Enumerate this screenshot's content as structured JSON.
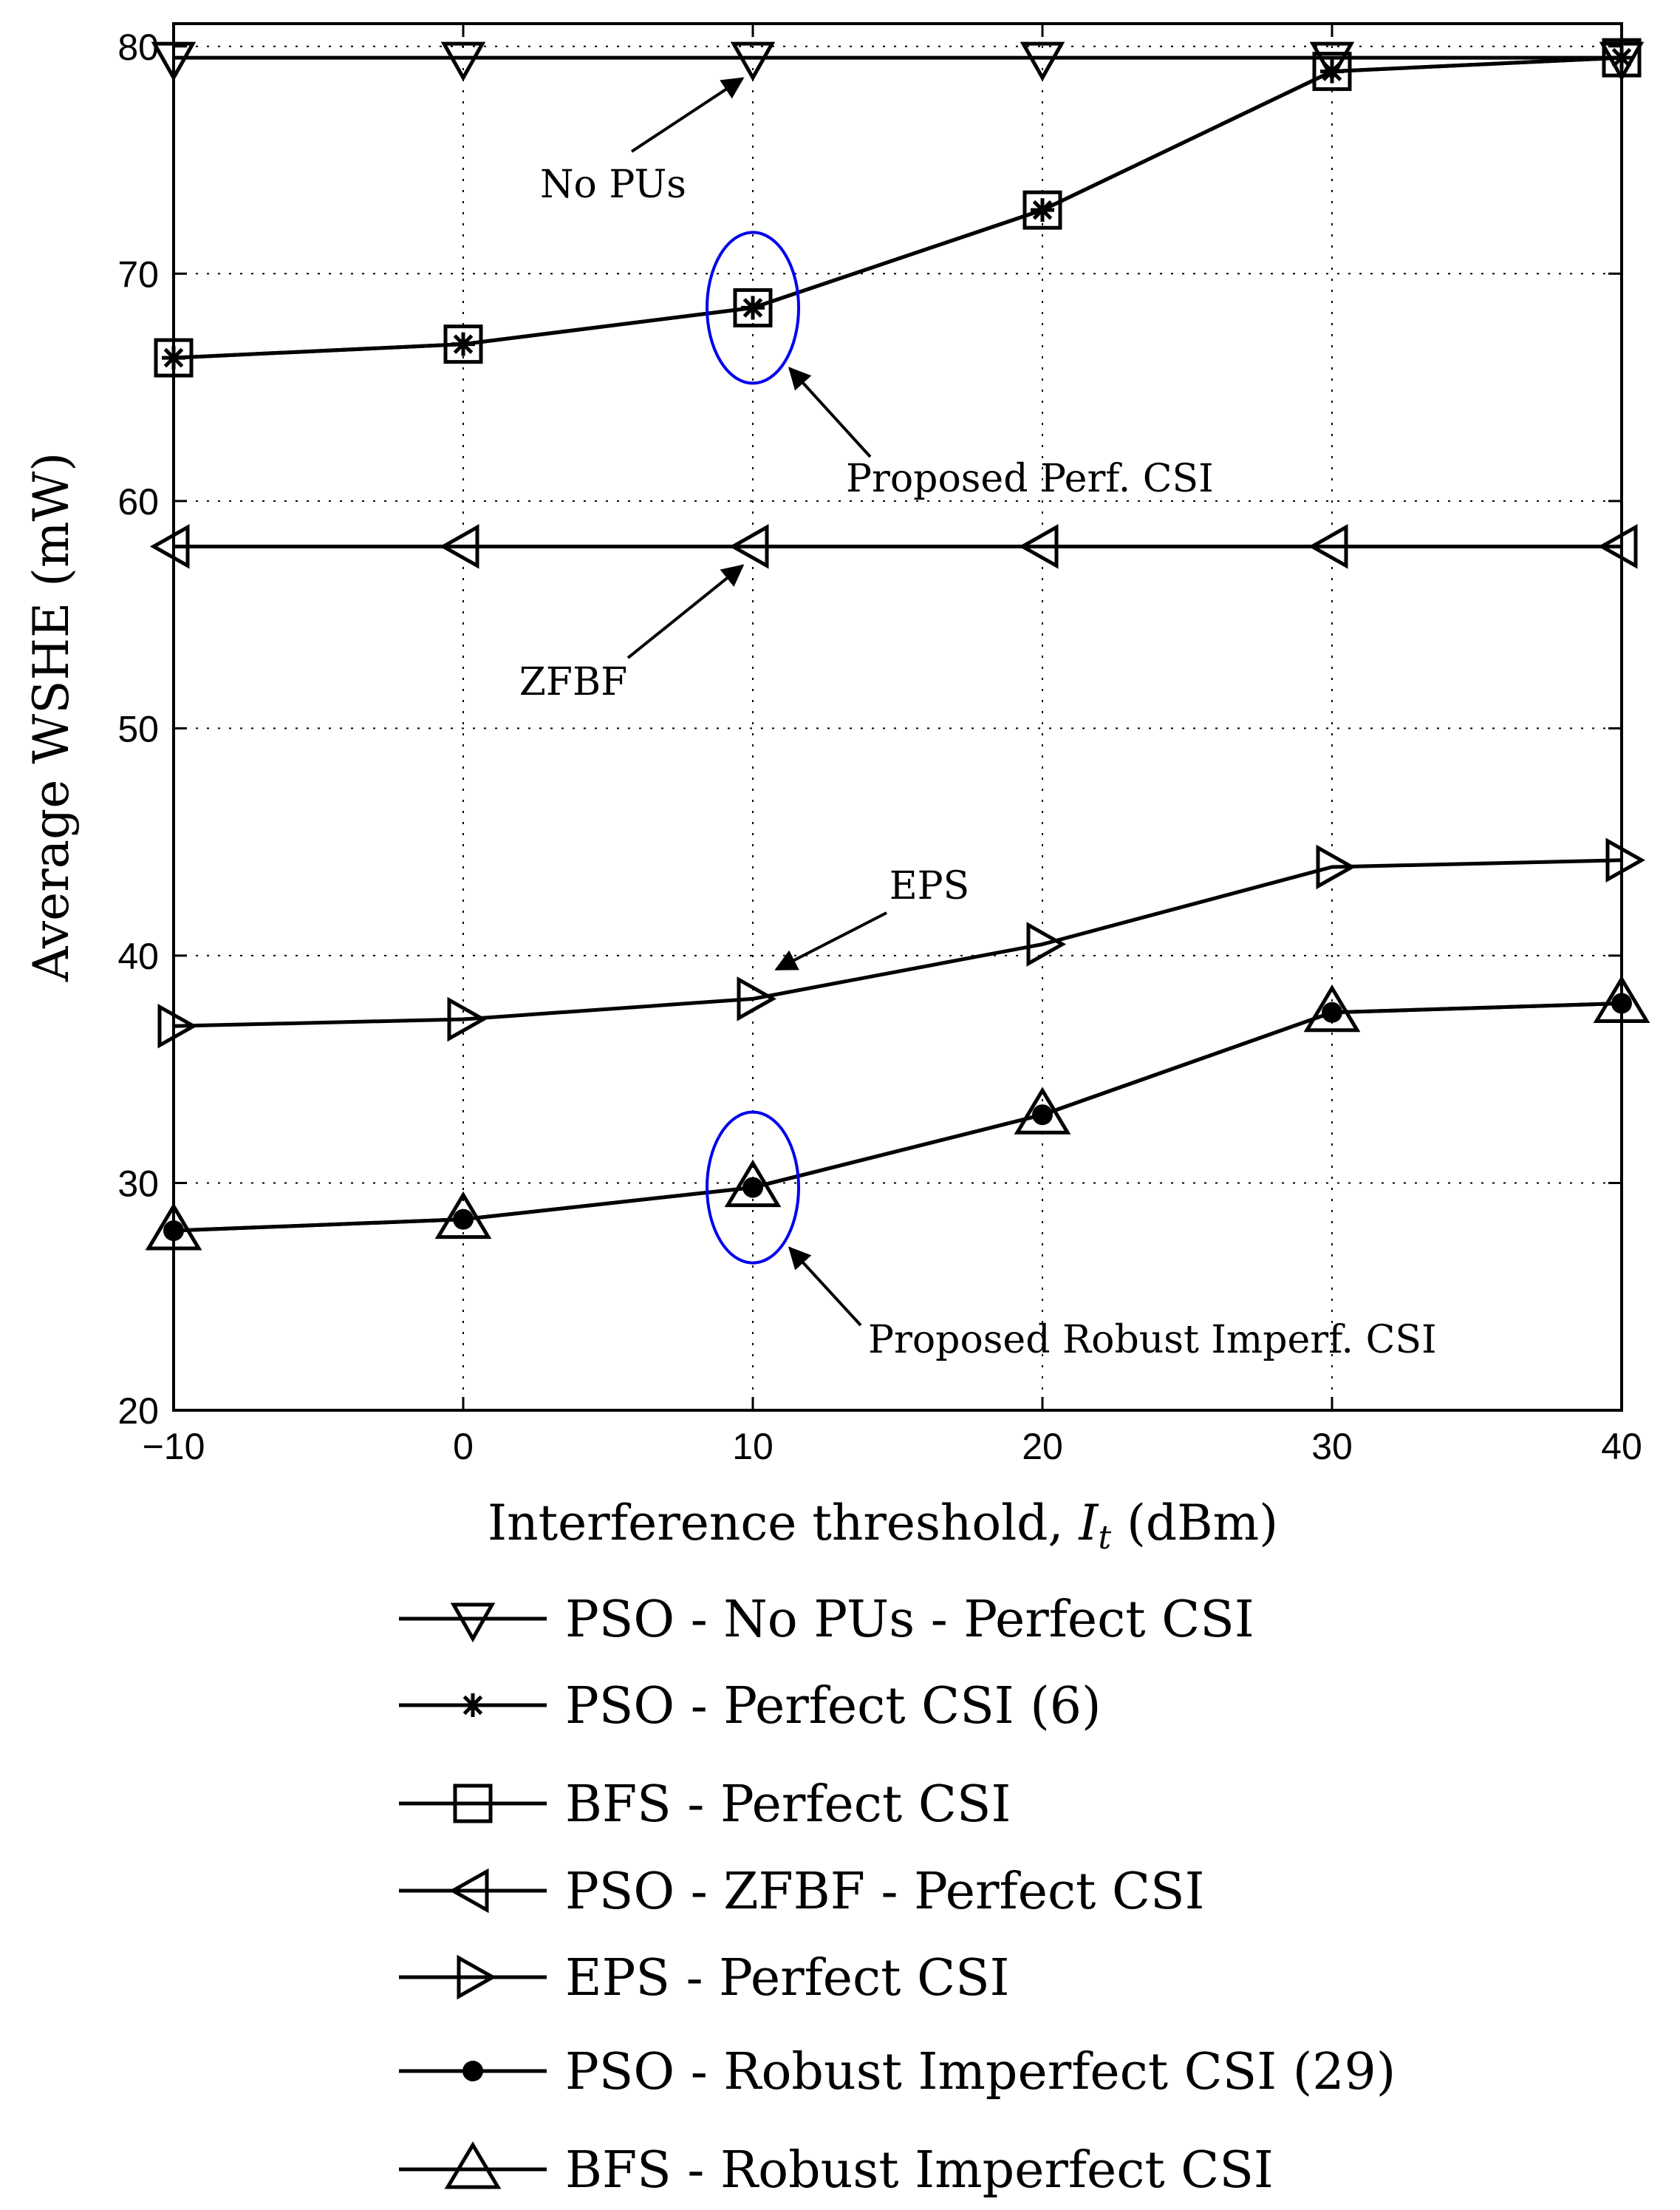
{
  "chart_data": {
    "type": "line",
    "title": "",
    "xlabel": "Interference threshold, ",
    "xlabel_symbol": "I",
    "xlabel_subscript": "t",
    "xlabel_unit": " (dBm)",
    "ylabel": "Average WSHE (mW)",
    "x": [
      -10,
      0,
      10,
      20,
      30,
      40
    ],
    "xlim": [
      -10,
      40
    ],
    "ylim": [
      20,
      81
    ],
    "xticks": [
      -10,
      0,
      10,
      20,
      30,
      40
    ],
    "xtick_labels": [
      "−10",
      "0",
      "10",
      "20",
      "30",
      "40"
    ],
    "yticks": [
      20,
      30,
      40,
      50,
      60,
      70,
      80
    ],
    "ytick_labels": [
      "20",
      "30",
      "40",
      "50",
      "60",
      "70",
      "80"
    ],
    "grid": true,
    "legend_position": "below",
    "series": [
      {
        "name": "PSO - No PUs - Perfect CSI",
        "marker": "triangle-down",
        "values": [
          79.5,
          79.5,
          79.5,
          79.5,
          79.5,
          79.5
        ]
      },
      {
        "name": "PSO - Perfect CSI (6)",
        "marker": "asterisk",
        "values": [
          66.3,
          66.9,
          68.5,
          72.8,
          78.9,
          79.5
        ]
      },
      {
        "name": "BFS - Perfect CSI",
        "marker": "square",
        "values": [
          66.3,
          66.9,
          68.5,
          72.8,
          78.9,
          79.5
        ]
      },
      {
        "name": "PSO - ZFBF - Perfect CSI",
        "marker": "triangle-left",
        "values": [
          58.0,
          58.0,
          58.0,
          58.0,
          58.0,
          58.0
        ]
      },
      {
        "name": "EPS - Perfect CSI",
        "marker": "triangle-right",
        "values": [
          36.9,
          37.2,
          38.1,
          40.5,
          43.9,
          44.2
        ]
      },
      {
        "name": "PSO - Robust Imperfect CSI (29)",
        "marker": "dot",
        "values": [
          27.9,
          28.4,
          29.8,
          33.0,
          37.5,
          37.9
        ]
      },
      {
        "name": "BFS - Robust Imperfect CSI",
        "marker": "triangle-up",
        "values": [
          27.9,
          28.4,
          29.8,
          33.0,
          37.5,
          37.9
        ]
      }
    ],
    "annotations": [
      {
        "text": "No PUs",
        "points_to": [
          10,
          79.5
        ]
      },
      {
        "text": "Proposed Perf. CSI",
        "points_to": [
          10,
          68.5
        ],
        "circled": true
      },
      {
        "text": "ZFBF",
        "points_to": [
          10,
          58.0
        ]
      },
      {
        "text": "EPS",
        "points_to": [
          10,
          38.1
        ]
      },
      {
        "text": "Proposed Robust Imperf. CSI",
        "points_to": [
          10,
          29.8
        ],
        "circled": true
      }
    ],
    "colors": {
      "series": "#000000",
      "highlight_ellipse": "#0000ee",
      "background": "#ffffff"
    }
  }
}
